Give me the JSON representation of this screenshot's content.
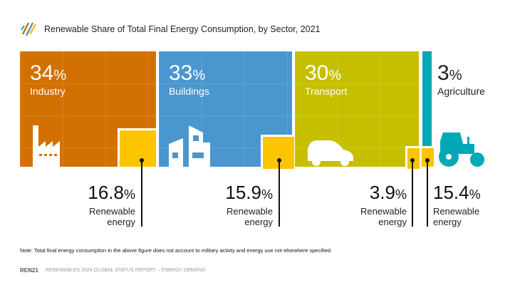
{
  "title": "Renewable Share of Total Final Energy Consumption, by Sector, 2021",
  "colors": {
    "industry": "#d27102",
    "buildings": "#4a96cf",
    "transport": "#c6bf00",
    "agriculture": "#00a9b5",
    "renewable": "#fdc400"
  },
  "chart_data": {
    "type": "treemap",
    "title": "Renewable Share of Total Final Energy Consumption, by Sector, 2021",
    "sectors": [
      {
        "name": "Industry",
        "share": "34",
        "renewable": "16.8",
        "icon": "factory-icon"
      },
      {
        "name": "Buildings",
        "share": "33",
        "renewable": "15.9",
        "icon": "buildings-icon"
      },
      {
        "name": "Transport",
        "share": "30",
        "renewable": "3.9",
        "icon": "car-icon"
      },
      {
        "name": "Agriculture",
        "share": "3",
        "renewable": "15.4",
        "icon": "tractor-icon"
      }
    ],
    "percent_sign": "%",
    "renewable_label_1": "Renewable",
    "renewable_label_2": "energy"
  },
  "note": "Note: Total final energy consumption in the above figure does not account to military activty and energy use not elsewhere specified.",
  "footer": {
    "logo": "REN21",
    "text": "RENEWABLES 2024 GLOBAL STATUS REPORT – ENERGY DEMAND"
  }
}
